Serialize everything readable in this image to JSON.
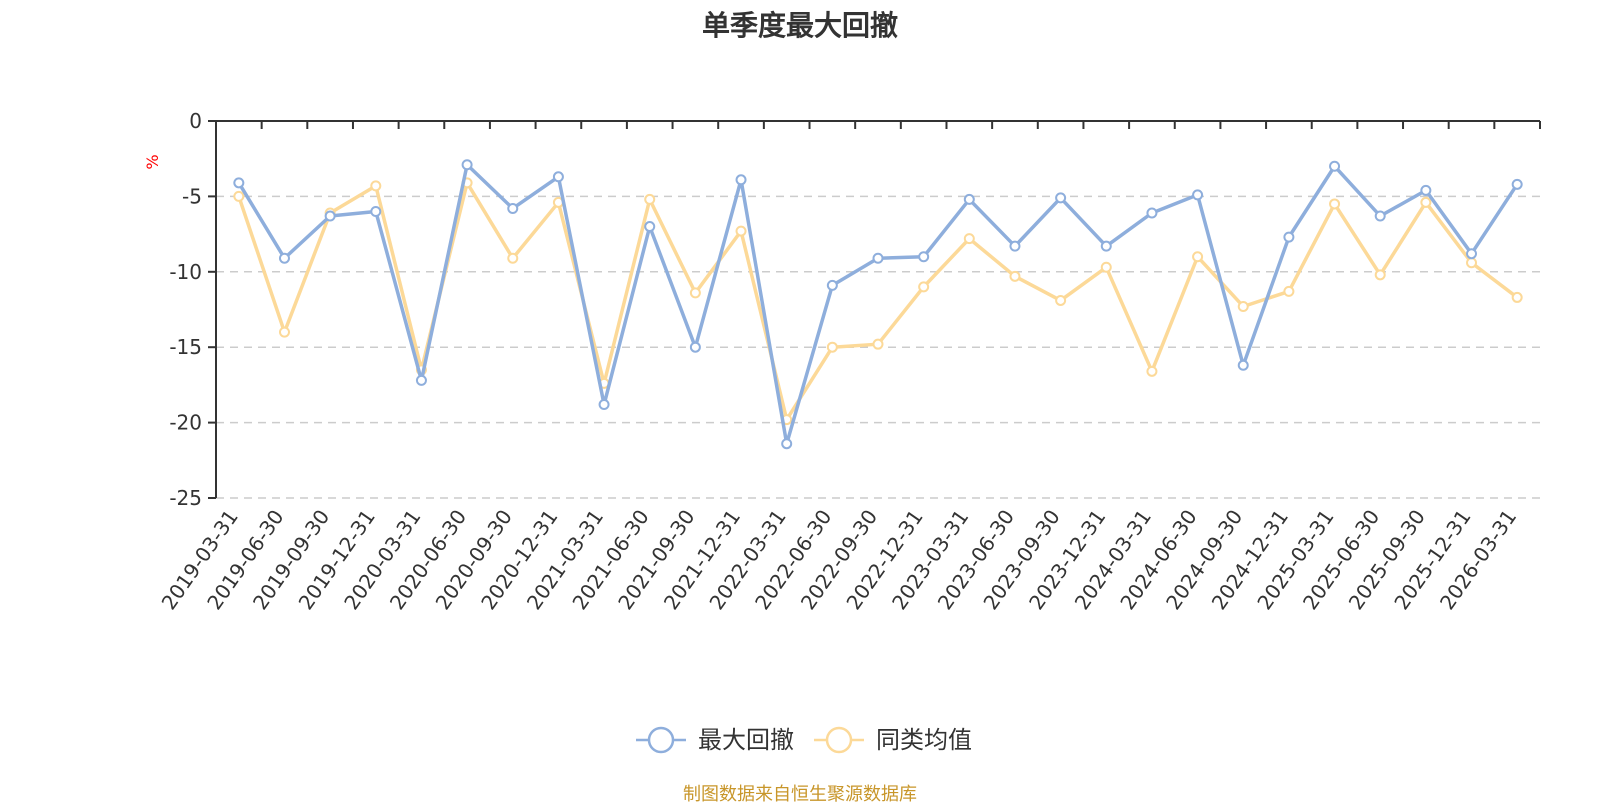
{
  "chart_data": {
    "type": "line",
    "title": "单季度最大回撤",
    "ylabel": "%",
    "ylim": [
      -25,
      0
    ],
    "yticks": [
      0,
      -5,
      -10,
      -15,
      -20,
      -25
    ],
    "grid": true,
    "legend_position": "bottom",
    "categories": [
      "2019-03-31",
      "2019-06-30",
      "2019-09-30",
      "2019-12-31",
      "2020-03-31",
      "2020-06-30",
      "2020-09-30",
      "2020-12-31",
      "2021-03-31",
      "2021-06-30",
      "2021-09-30",
      "2021-12-31",
      "2022-03-31",
      "2022-06-30",
      "2022-09-30",
      "2022-12-31",
      "2023-03-31",
      "2023-06-30",
      "2023-09-30",
      "2023-12-31",
      "2024-03-31",
      "2024-06-30",
      "2024-09-30",
      "2024-12-31",
      "2025-03-31",
      "2025-06-30",
      "2025-09-30",
      "2025-12-31",
      "2026-03-31"
    ],
    "series": [
      {
        "name": "最大回撤",
        "color": "#8eaedc",
        "values": [
          -4.1,
          -9.1,
          -6.3,
          -6.0,
          -17.2,
          -2.9,
          -5.8,
          -3.7,
          -18.8,
          -7.0,
          -15.0,
          -3.9,
          -21.4,
          -10.9,
          -9.1,
          -9.0,
          -5.2,
          -8.3,
          -5.1,
          -8.3,
          -6.1,
          -4.9,
          -16.2,
          -7.7,
          -3.0,
          -6.3,
          -4.6,
          -8.8,
          -4.2
        ]
      },
      {
        "name": "同类均值",
        "color": "#fcd998",
        "values": [
          -5.0,
          -14.0,
          -6.1,
          -4.3,
          -16.5,
          -4.1,
          -9.1,
          -5.4,
          -17.4,
          -5.2,
          -11.4,
          -7.3,
          -19.8,
          -15.0,
          -14.8,
          -11.0,
          -7.8,
          -10.3,
          -11.9,
          -9.7,
          -16.6,
          -9.0,
          -12.3,
          -11.3,
          -5.5,
          -10.2,
          -5.4,
          -9.4,
          -11.7
        ]
      }
    ]
  },
  "source_note": "制图数据来自恒生聚源数据库",
  "colors": {
    "title": "#333333",
    "axis": "#333333",
    "grid": "#cccccc",
    "unit": "#ff0000",
    "source": "#c8962a"
  }
}
